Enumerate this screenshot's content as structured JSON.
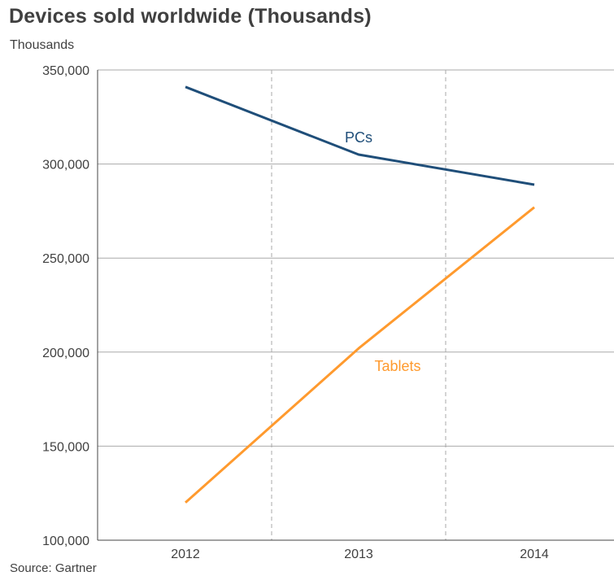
{
  "title": "Devices sold worldwide (Thousands)",
  "unit_label": "Thousands",
  "source": "Source: Gartner",
  "chart_data": {
    "type": "line",
    "title": "Devices sold worldwide (Thousands)",
    "ylabel": "Thousands",
    "xlabel": "",
    "categories": [
      "2012",
      "2013",
      "2014"
    ],
    "ylim": [
      100000,
      350000
    ],
    "yticks": [
      100000,
      150000,
      200000,
      250000,
      300000,
      350000
    ],
    "ytick_labels": [
      "100,000",
      "150,000",
      "200,000",
      "250,000",
      "300,000",
      "350,000"
    ],
    "grid": "horizontal solid, vertical dashed",
    "series": [
      {
        "name": "PCs",
        "color": "#1f4e79",
        "values": [
          341000,
          305000,
          289000
        ]
      },
      {
        "name": "Tablets",
        "color": "#ff9a2e",
        "values": [
          120000,
          202000,
          277000
        ]
      }
    ]
  }
}
